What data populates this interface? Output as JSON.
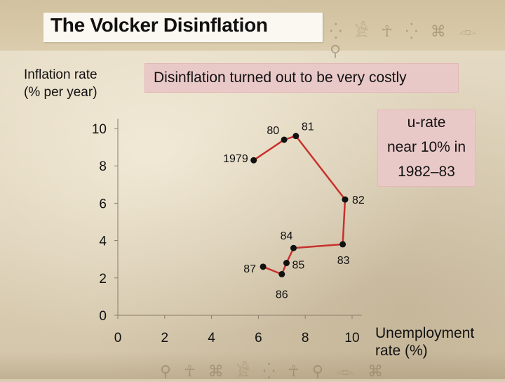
{
  "chart_data": {
    "type": "line",
    "title": "The Volcker Disinflation",
    "ylabel": "Inflation rate (% per year)",
    "ylabel_lines": [
      "Inflation rate",
      "(% per year)"
    ],
    "xlabel": "Unemployment rate (%)",
    "xlabel_lines": [
      "Unemployment",
      "rate (%)"
    ],
    "xlim": [
      0,
      10
    ],
    "ylim": [
      0,
      10
    ],
    "xticks": [
      0,
      2,
      4,
      6,
      8,
      10
    ],
    "yticks": [
      0,
      2,
      4,
      6,
      8,
      10
    ],
    "grid": false,
    "series": [
      {
        "color": "#c8312c",
        "points": [
          {
            "label": "1979",
            "x": 5.8,
            "y": 8.3
          },
          {
            "label": "80",
            "x": 7.1,
            "y": 9.4
          },
          {
            "label": "81",
            "x": 7.6,
            "y": 9.6
          },
          {
            "label": "82",
            "x": 9.7,
            "y": 6.2
          },
          {
            "label": "83",
            "x": 9.6,
            "y": 3.8
          },
          {
            "label": "84",
            "x": 7.5,
            "y": 3.6
          },
          {
            "label": "85",
            "x": 7.2,
            "y": 2.8
          },
          {
            "label": "86",
            "x": 7.0,
            "y": 2.2
          },
          {
            "label": "87",
            "x": 6.2,
            "y": 2.6
          }
        ]
      }
    ],
    "annotations": {
      "costly": "Disinflation turned out to be very costly",
      "urate": [
        "u-rate",
        "near 10% in",
        "1982–83"
      ]
    }
  },
  "colors": {
    "line": "#c8312c",
    "marker": "#111111",
    "callout": "#e9c9c8"
  }
}
